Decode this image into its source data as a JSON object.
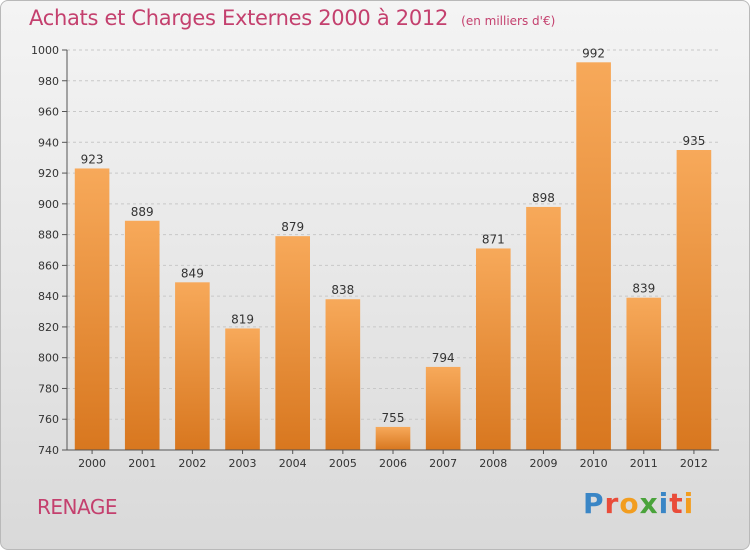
{
  "header": {
    "title": "Achats et Charges Externes 2000 à 2012",
    "subtitle": "(en milliers d'€)"
  },
  "location": "RENAGE",
  "logo": {
    "letters": [
      {
        "ch": "P",
        "color": "#3a86c6"
      },
      {
        "ch": "r",
        "color": "#e94c3a"
      },
      {
        "ch": "o",
        "color": "#f29d1f"
      },
      {
        "ch": "x",
        "color": "#4aa33b"
      },
      {
        "ch": "i",
        "color": "#3a86c6"
      },
      {
        "ch": "t",
        "color": "#e94c3a"
      },
      {
        "ch": "i",
        "color": "#f29d1f"
      }
    ]
  },
  "colors": {
    "bar_top": "#f7a95a",
    "bar_bottom": "#d8771f",
    "title": "#c4406e"
  },
  "chart_data": {
    "type": "bar",
    "categories": [
      "2000",
      "2001",
      "2002",
      "2003",
      "2004",
      "2005",
      "2006",
      "2007",
      "2008",
      "2009",
      "2010",
      "2011",
      "2012"
    ],
    "values": [
      923,
      889,
      849,
      819,
      879,
      838,
      755,
      794,
      871,
      898,
      992,
      839,
      935
    ],
    "ylim": [
      740,
      1000
    ],
    "yticks": [
      740,
      760,
      780,
      800,
      820,
      840,
      860,
      880,
      900,
      920,
      940,
      960,
      980,
      1000
    ],
    "grid": true,
    "data_labels": true,
    "xlabel": "",
    "ylabel": ""
  }
}
